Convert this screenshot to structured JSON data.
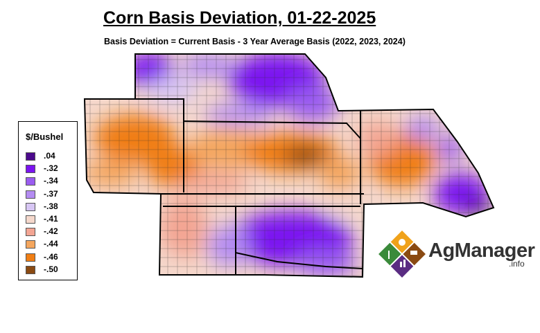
{
  "title": "Corn Basis Deviation, 01-22-2025",
  "subtitle": "Basis Deviation = Current Basis - 3 Year Average Basis (2022, 2023, 2024)",
  "legend": {
    "title": "$/Bushel",
    "items": [
      {
        "label": ".04",
        "color": "#4b0a8c"
      },
      {
        "label": "-.32",
        "color": "#7b14f0"
      },
      {
        "label": "-.34",
        "color": "#9a5cf0"
      },
      {
        "label": "-.37",
        "color": "#b48cf2"
      },
      {
        "label": "-.38",
        "color": "#d7c6f4"
      },
      {
        "label": "-.41",
        "color": "#f5d8cc"
      },
      {
        "label": "-.42",
        "color": "#f3a593"
      },
      {
        "label": "-.44",
        "color": "#f4a65e"
      },
      {
        "label": "-.46",
        "color": "#f07e14"
      },
      {
        "label": "-.50",
        "color": "#8a4a12"
      }
    ]
  },
  "logo": {
    "name": "AgManager",
    "suffix": ".info"
  }
}
